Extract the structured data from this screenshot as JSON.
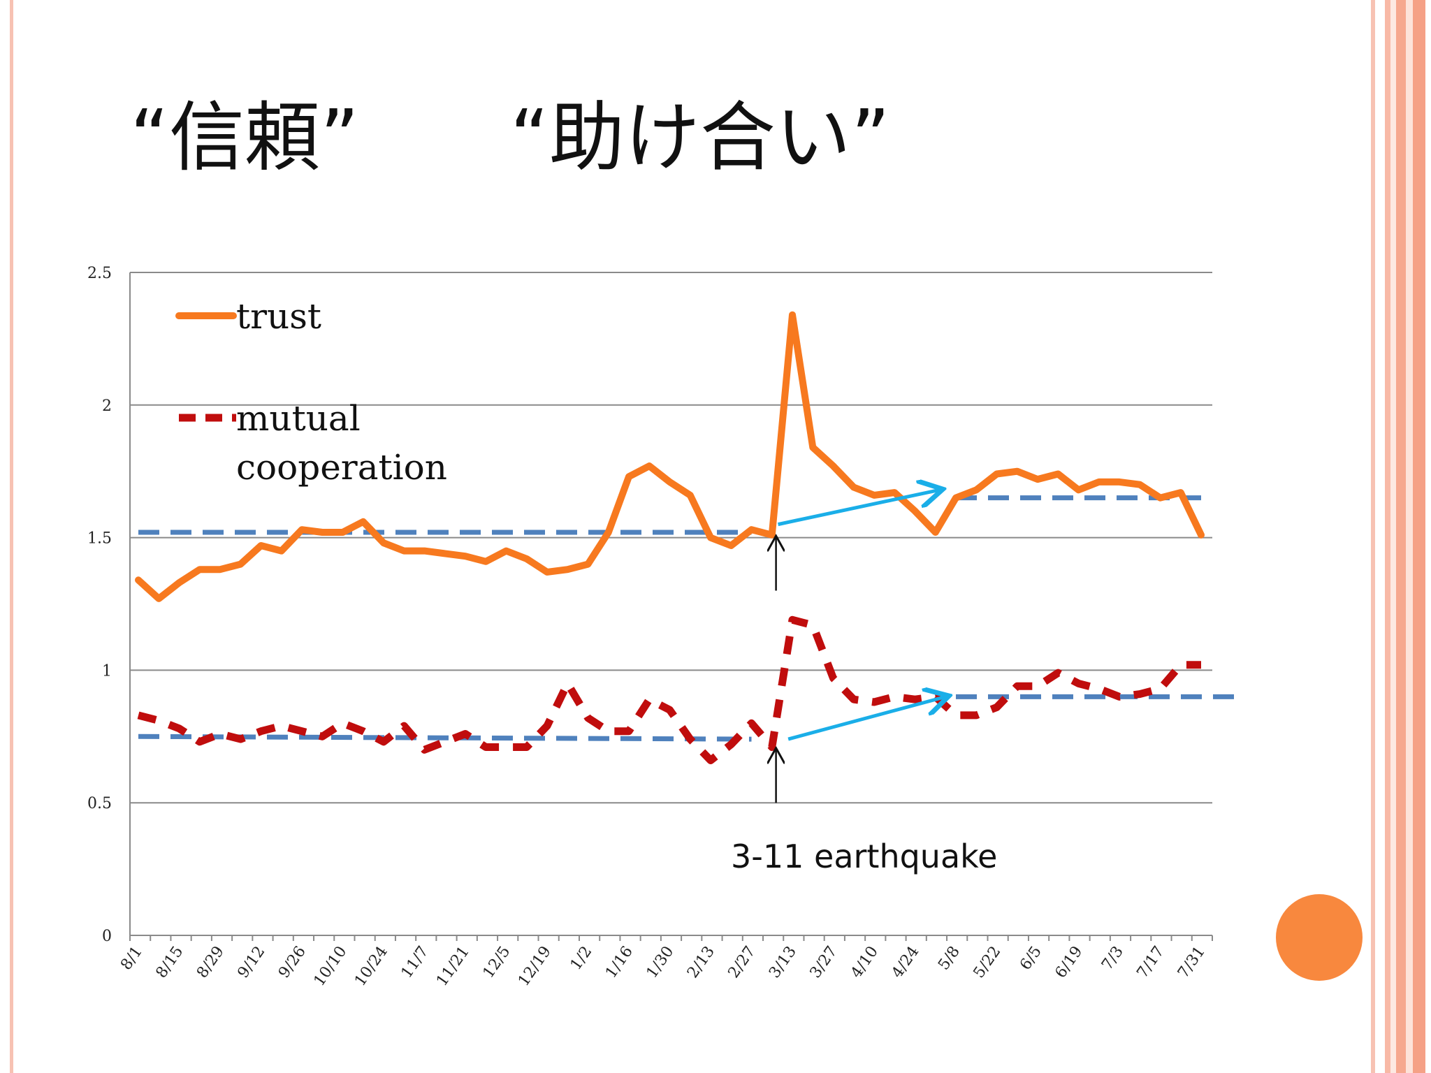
{
  "title": "“信頼”　　“助け合い”",
  "colors": {
    "trust": "#f7791f",
    "mutual": "#c00d0d",
    "trend": "#4f81bd",
    "arrow": "#1aaee8",
    "accent_circle": "#f8883e"
  },
  "chart_data": {
    "type": "line",
    "ylim": [
      0,
      2.5
    ],
    "yticks": [
      "0",
      "0.5",
      "1",
      "1.5",
      "2",
      "2.5"
    ],
    "x_tick_labels": [
      "8/1",
      "8/15",
      "8/29",
      "9/12",
      "9/26",
      "10/10",
      "10/24",
      "11/7",
      "11/21",
      "12/5",
      "12/19",
      "1/2",
      "1/16",
      "1/30",
      "2/13",
      "2/27",
      "3/13",
      "3/27",
      "4/10",
      "4/24",
      "5/8",
      "5/22",
      "6/5",
      "6/19",
      "7/3",
      "7/17",
      "7/31"
    ],
    "grid": true,
    "legend_placement": "top-left",
    "legend": [
      {
        "key": "trust",
        "label": "trust"
      },
      {
        "key": "mutual",
        "label_lines": [
          "mutual",
          "cooperation"
        ]
      }
    ],
    "series": [
      {
        "key": "trust",
        "name": "trust",
        "style": "solid",
        "values": [
          1.34,
          1.27,
          1.33,
          1.38,
          1.38,
          1.4,
          1.47,
          1.45,
          1.53,
          1.52,
          1.52,
          1.56,
          1.48,
          1.45,
          1.45,
          1.44,
          1.43,
          1.41,
          1.45,
          1.42,
          1.37,
          1.38,
          1.4,
          1.52,
          1.73,
          1.77,
          1.71,
          1.66,
          1.5,
          1.47,
          1.53,
          1.51,
          2.34,
          1.84,
          1.77,
          1.69,
          1.66,
          1.67,
          1.6,
          1.52,
          1.65,
          1.68,
          1.74,
          1.75,
          1.72,
          1.74,
          1.68,
          1.71,
          1.71,
          1.7,
          1.65,
          1.67,
          1.51
        ]
      },
      {
        "key": "mutual",
        "name": "mutual cooperation",
        "style": "dashed",
        "values": [
          0.83,
          0.81,
          0.78,
          0.73,
          0.76,
          0.74,
          0.77,
          0.79,
          0.77,
          0.75,
          0.8,
          0.77,
          0.73,
          0.79,
          0.7,
          0.73,
          0.76,
          0.71,
          0.71,
          0.71,
          0.79,
          0.95,
          0.82,
          0.77,
          0.77,
          0.89,
          0.85,
          0.74,
          0.66,
          0.72,
          0.8,
          0.71,
          1.19,
          1.17,
          0.97,
          0.89,
          0.88,
          0.9,
          0.89,
          0.9,
          0.83,
          0.83,
          0.86,
          0.94,
          0.94,
          0.99,
          0.95,
          0.93,
          0.9,
          0.91,
          0.93,
          1.02,
          1.02
        ]
      }
    ],
    "trend_lines": [
      {
        "series": "trust",
        "segments": [
          {
            "x": [
              0,
              30
            ],
            "y": [
              1.52,
              1.52
            ]
          },
          {
            "x": [
              40,
              52
            ],
            "y": [
              1.65,
              1.65
            ]
          }
        ]
      },
      {
        "series": "mutual",
        "segments": [
          {
            "x": [
              0,
              30
            ],
            "y": [
              0.75,
              0.74
            ]
          },
          {
            "x": [
              40,
              54
            ],
            "y": [
              0.9,
              0.9
            ]
          }
        ]
      }
    ],
    "shift_arrows": [
      {
        "from": [
          31.3,
          1.55
        ],
        "to": [
          39.2,
          1.68
        ]
      },
      {
        "from": [
          31.8,
          0.74
        ],
        "to": [
          39.5,
          0.9
        ]
      }
    ],
    "annotation": {
      "text": "3-11 earthquake",
      "x": 31.2,
      "marker_arrows": [
        {
          "y_from": 1.3,
          "y_to": 1.5
        },
        {
          "y_from": 0.5,
          "y_to": 0.7
        }
      ]
    }
  }
}
